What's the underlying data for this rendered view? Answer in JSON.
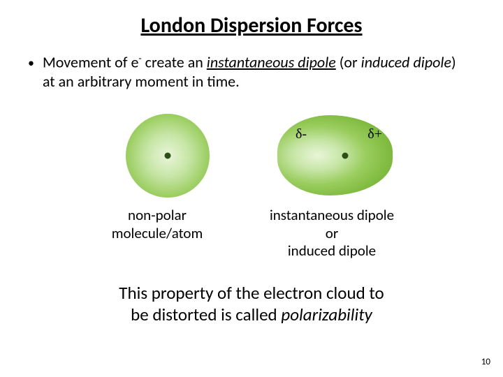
{
  "title": "London Dispersion Forces",
  "bullet": {
    "pre": "Movement of e",
    "sup": "-",
    "mid": " create an ",
    "term1": "instantaneous dipole",
    "paren_open": " (or ",
    "term2": "induced dipole",
    "post": ") at an arbitrary moment in time."
  },
  "figure_left": {
    "caption_line1": "non-polar",
    "caption_line2": "molecule/atom"
  },
  "figure_right": {
    "delta_minus": "δ-",
    "delta_plus": "δ+",
    "caption_line1": "instantaneous dipole",
    "caption_line2": "or",
    "caption_line3": "induced dipole"
  },
  "footer": {
    "line1": "This property of the electron cloud to",
    "line2_pre": "be distorted is called ",
    "line2_term": "polarizability"
  },
  "page_number": "10",
  "colors": {
    "text": "#000000",
    "bg": "#ffffff",
    "atom_light": "#e8f5d8",
    "atom_mid": "#9acd5e",
    "atom_dark": "#7ab83a",
    "nucleus": "#2d5016"
  }
}
